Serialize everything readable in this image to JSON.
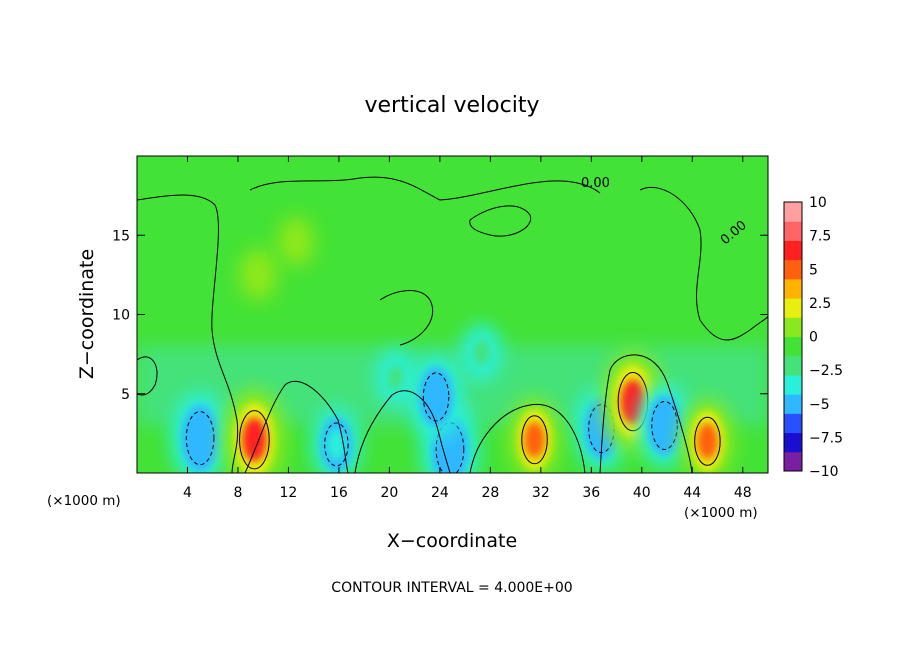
{
  "chart_data": {
    "type": "heatmap",
    "title": "vertical velocity",
    "xlabel": "X−coordinate",
    "ylabel": "Z−coordinate",
    "x_unit_left": "(×1000 m)",
    "x_unit_right": "(×1000 m)",
    "xlim": [
      0,
      50
    ],
    "ylim": [
      0,
      20
    ],
    "xticks": [
      4,
      8,
      12,
      16,
      20,
      24,
      28,
      32,
      36,
      40,
      44,
      48
    ],
    "yticks": [
      5,
      10,
      15
    ],
    "colorbar": {
      "ticks": [
        10,
        7.5,
        5,
        2.5,
        0,
        -2.5,
        -5,
        -7.5,
        -10
      ],
      "tick_labels": [
        "10",
        "7.5",
        "5",
        "2.5",
        "0",
        "−2.5",
        "−5",
        "−7.5",
        "−10"
      ],
      "colors": [
        "#7b1fa2",
        "#1a0fd0",
        "#2850ff",
        "#2fb8ff",
        "#29f0d8",
        "#44e27a",
        "#43e236",
        "#8ae81e",
        "#e8ee10",
        "#ffb300",
        "#ff6010",
        "#ff2020",
        "#ff6565",
        "#ffa0a0"
      ]
    },
    "footer": "CONTOUR INTERVAL = 4.000E+00",
    "contour_labels": [
      "0.00",
      "0.00"
    ],
    "features": [
      {
        "x": 5.0,
        "z": 2.2,
        "value": -6
      },
      {
        "x": 9.3,
        "z": 2.1,
        "value": 7
      },
      {
        "x": 15.8,
        "z": 1.8,
        "value": -4
      },
      {
        "x": 24.8,
        "z": 1.5,
        "value": -6
      },
      {
        "x": 31.5,
        "z": 2.1,
        "value": 5
      },
      {
        "x": 36.8,
        "z": 2.8,
        "value": -5
      },
      {
        "x": 39.3,
        "z": 4.5,
        "value": 7
      },
      {
        "x": 41.8,
        "z": 3.0,
        "value": -5
      },
      {
        "x": 45.2,
        "z": 2.0,
        "value": 5
      },
      {
        "x": 20.5,
        "z": 6.0,
        "value": -2
      },
      {
        "x": 23.7,
        "z": 4.8,
        "value": -5
      },
      {
        "x": 27.3,
        "z": 7.6,
        "value": -2
      },
      {
        "x": 9.6,
        "z": 12.5,
        "value": 1.5
      },
      {
        "x": 12.6,
        "z": 14.6,
        "value": 1.2
      }
    ]
  }
}
